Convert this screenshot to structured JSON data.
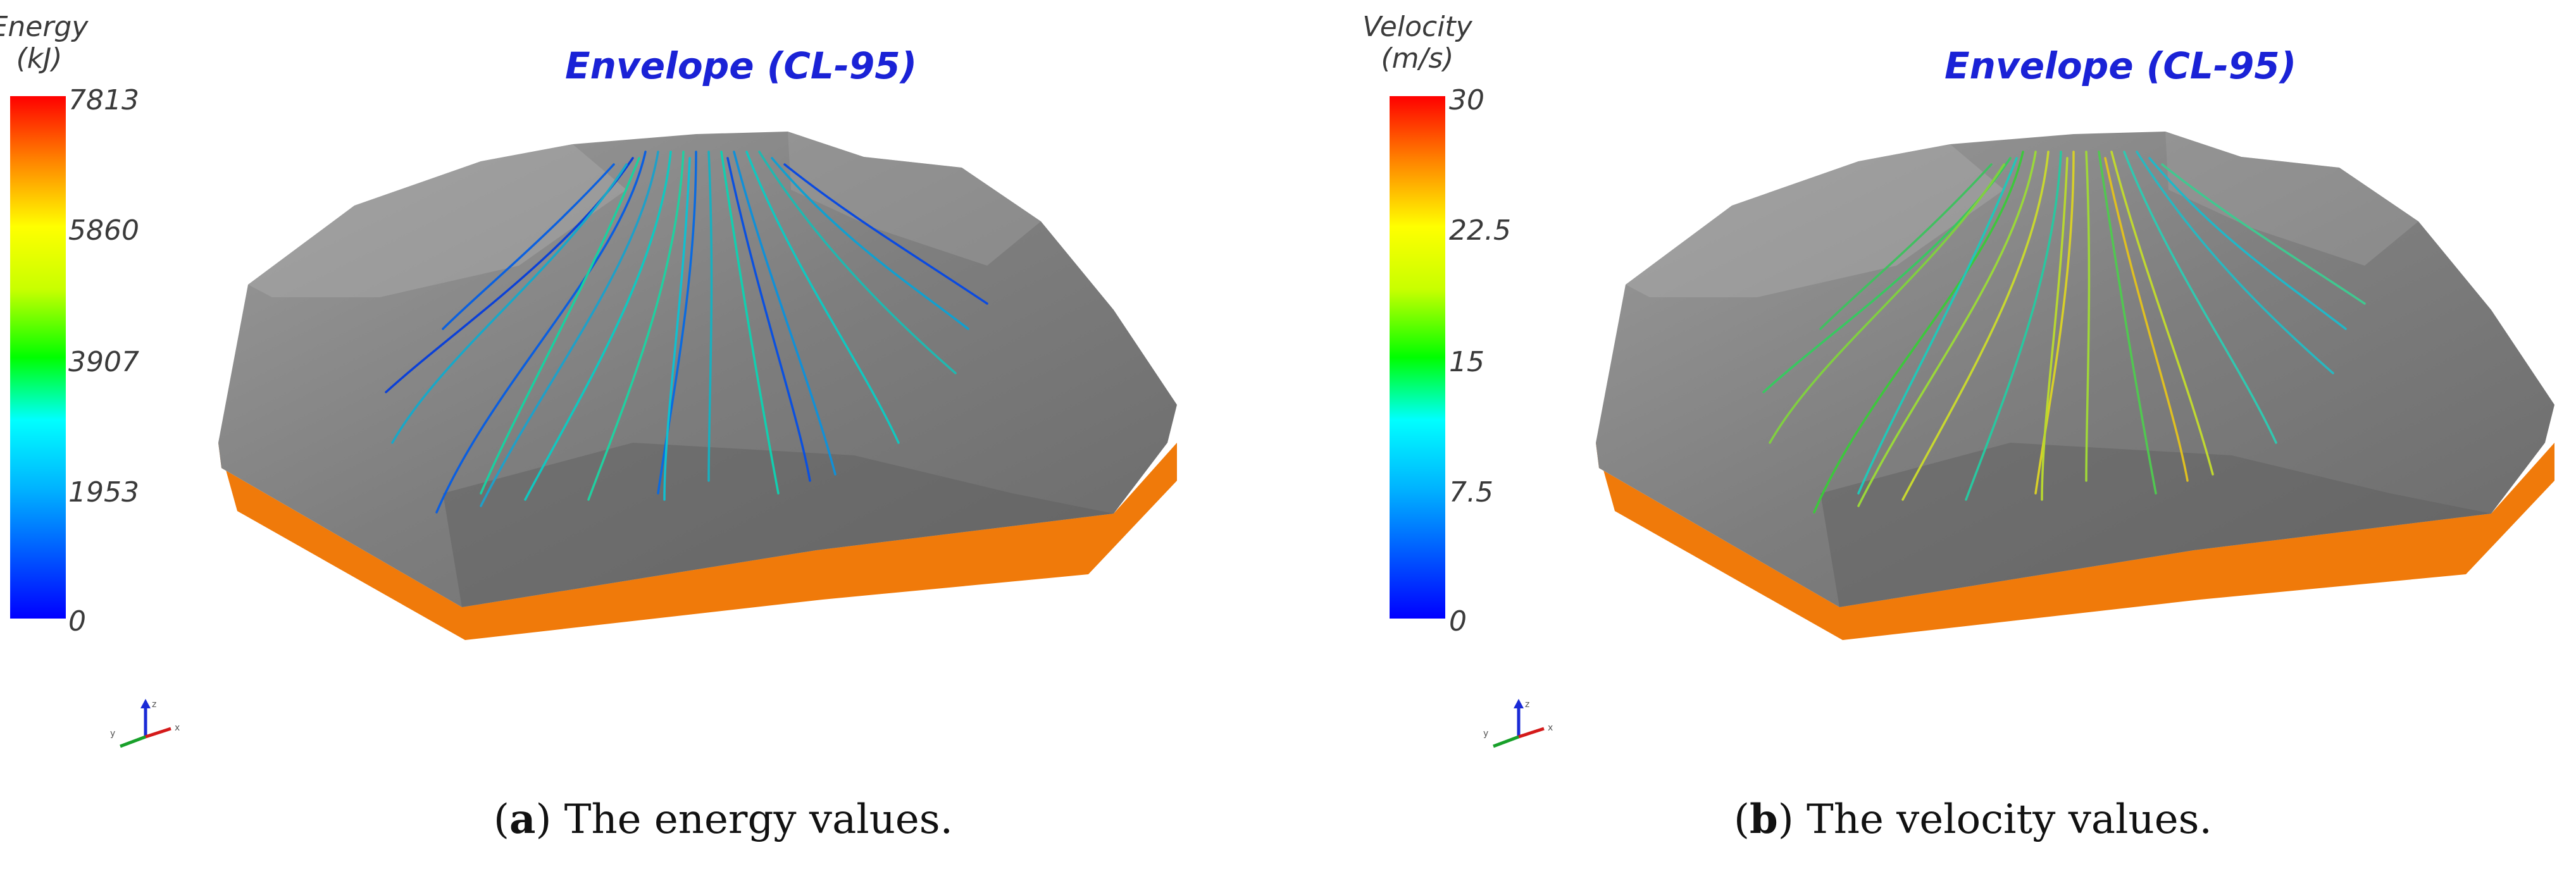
{
  "panels": [
    {
      "id": "a",
      "colorbar": {
        "title_line1": "Energy",
        "title_line2": "(kJ)",
        "ticks": [
          "7813",
          "5860",
          "3907",
          "1953",
          "0"
        ]
      },
      "plot_title": "Envelope (CL-95)",
      "caption": {
        "open": "(",
        "letter": "a",
        "rest": ") The energy values."
      }
    },
    {
      "id": "b",
      "colorbar": {
        "title_line1": "Velocity",
        "title_line2": "(m/s)",
        "ticks": [
          "30",
          "22.5",
          "15",
          "7.5",
          "0"
        ]
      },
      "plot_title": "Envelope (CL-95)",
      "caption": {
        "open": "(",
        "letter": "b",
        "rest": ") The velocity values."
      }
    }
  ],
  "colors": {
    "title": "#1a22d6",
    "base": "#f07a0a",
    "terrain": "#8a8a8a"
  },
  "axes_labels": {
    "z": "z",
    "x": "x",
    "y": "y"
  }
}
